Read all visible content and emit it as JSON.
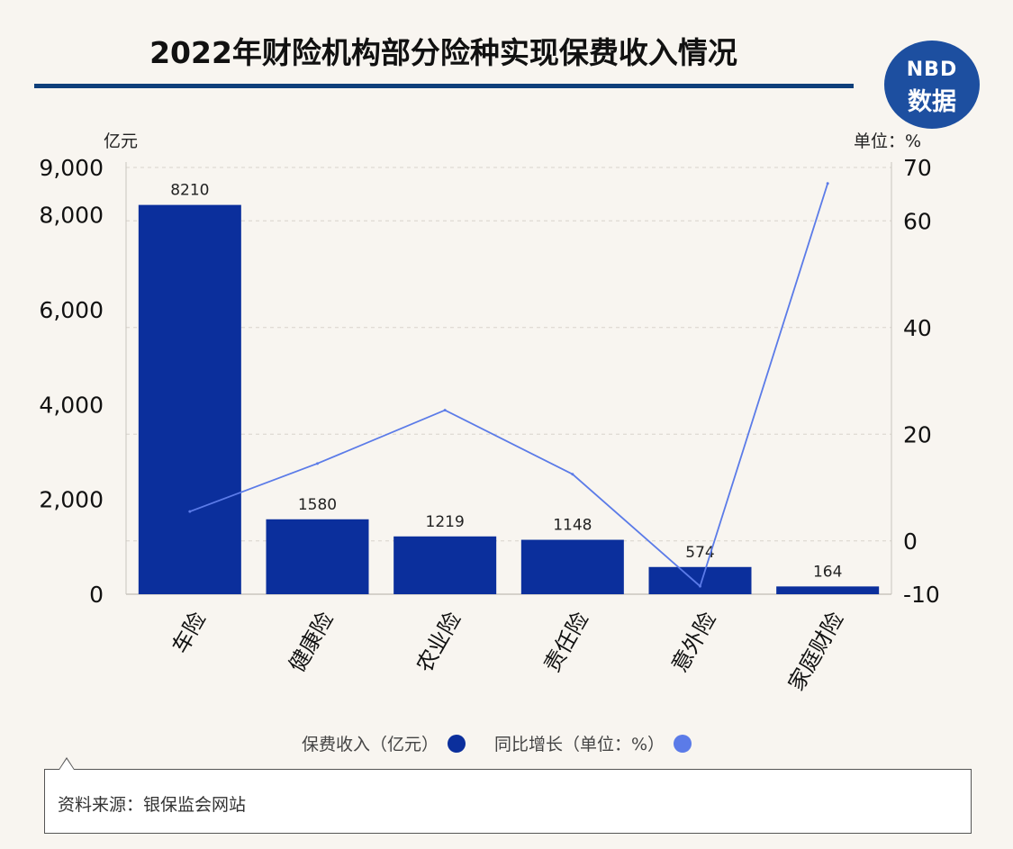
{
  "title": "2022年财险机构部分险种实现保费收入情况",
  "logo": {
    "line1": "NBD",
    "line2": "数据"
  },
  "units": {
    "left": "亿元",
    "right": "单位：%"
  },
  "legend": {
    "bar": "保费收入（亿元）",
    "line": "同比增长（单位：%）"
  },
  "source": "资料来源：银保监会网站",
  "colors": {
    "bar": "#0b2f9c",
    "line": "#5b7be8",
    "accent": "#0f3f7a"
  },
  "chart_data": {
    "type": "bar",
    "categories": [
      "车险",
      "健康险",
      "农业险",
      "责任险",
      "意外险",
      "家庭财险"
    ],
    "series": [
      {
        "name": "保费收入（亿元）",
        "type": "bar",
        "axis": "left",
        "values": [
          8210,
          1580,
          1219,
          1148,
          574,
          164
        ]
      },
      {
        "name": "同比增长（单位：%）",
        "type": "line",
        "axis": "right",
        "values": [
          5.5,
          14.5,
          24.5,
          12.5,
          -8.5,
          67
        ]
      }
    ],
    "y_left": {
      "ylim": [
        0,
        9000
      ],
      "ticks": [
        0,
        2000,
        4000,
        6000,
        8000,
        9000
      ],
      "tick_labels": [
        "0",
        "2,000",
        "4,000",
        "6,000",
        "8,000",
        "9,000"
      ]
    },
    "y_right": {
      "ylim": [
        -10,
        70
      ],
      "ticks": [
        -10,
        0,
        20,
        40,
        60,
        70
      ],
      "tick_labels": [
        "-10",
        "0",
        "20",
        "40",
        "60",
        "70"
      ]
    },
    "data_labels": [
      "8210",
      "1580",
      "1219",
      "1148",
      "574",
      "164"
    ],
    "grid": true,
    "legend_position": "bottom"
  }
}
